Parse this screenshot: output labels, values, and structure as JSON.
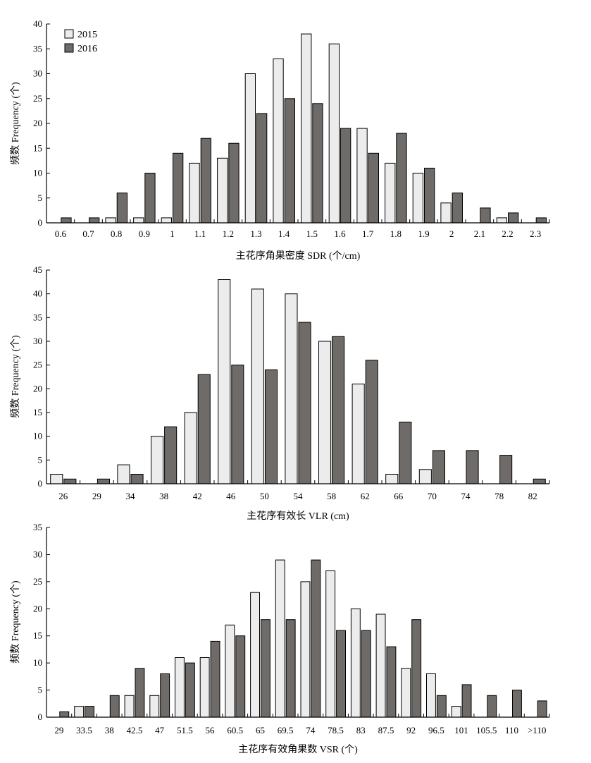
{
  "colors": {
    "series_2015": "#ececec",
    "series_2016": "#6f6b69",
    "bar_stroke": "#000000",
    "axis": "#000000"
  },
  "chart_data": [
    {
      "type": "bar",
      "xlabel": "主花序角果密度 SDR (个/cm)",
      "ylabel": "频数 Frequency (个)",
      "ylim": [
        0,
        40
      ],
      "yticks": [
        "0",
        "5",
        "10",
        "15",
        "20",
        "25",
        "30",
        "35",
        "40"
      ],
      "legend": {
        "position": "top-left",
        "entries": [
          "2015",
          "2016"
        ]
      },
      "grid": false,
      "categories": [
        "0.6",
        "0.7",
        "0.8",
        "0.9",
        "1",
        "1.1",
        "1.2",
        "1.3",
        "1.4",
        "1.5",
        "1.6",
        "1.7",
        "1.8",
        "1.9",
        "2",
        "2.1",
        "2.2",
        "2.3"
      ],
      "series": [
        {
          "name": "2015",
          "values": [
            0,
            0,
            1,
            1,
            1,
            12,
            13,
            30,
            33,
            38,
            36,
            19,
            12,
            10,
            4,
            0,
            1,
            0
          ]
        },
        {
          "name": "2016",
          "values": [
            1,
            1,
            6,
            10,
            14,
            17,
            16,
            22,
            25,
            24,
            19,
            14,
            18,
            11,
            6,
            3,
            2,
            1
          ]
        }
      ]
    },
    {
      "type": "bar",
      "xlabel": "主花序有效长 VLR (cm)",
      "ylabel": "频数 Frequency (个)",
      "ylim": [
        0,
        45
      ],
      "yticks": [
        "0",
        "5",
        "10",
        "15",
        "20",
        "25",
        "30",
        "35",
        "40",
        "45"
      ],
      "grid": false,
      "categories": [
        "26",
        "29",
        "34",
        "38",
        "42",
        "46",
        "50",
        "54",
        "58",
        "62",
        "66",
        "70",
        "74",
        "78",
        "82"
      ],
      "series": [
        {
          "name": "2015",
          "values": [
            2,
            0,
            4,
            10,
            15,
            43,
            41,
            40,
            30,
            21,
            2,
            3,
            0,
            0,
            0
          ]
        },
        {
          "name": "2016",
          "values": [
            1,
            1,
            2,
            12,
            23,
            25,
            24,
            34,
            31,
            26,
            13,
            7,
            7,
            6,
            1
          ]
        }
      ]
    },
    {
      "type": "bar",
      "xlabel": "主花序有效角果数 VSR (个)",
      "ylabel": "频数 Frequency (个)",
      "ylim": [
        0,
        35
      ],
      "yticks": [
        "0",
        "5",
        "10",
        "15",
        "20",
        "25",
        "30",
        "35"
      ],
      "grid": false,
      "categories": [
        "29",
        "33.5",
        "38",
        "42.5",
        "47",
        "51.5",
        "56",
        "60.5",
        "65",
        "69.5",
        "74",
        "78.5",
        "83",
        "87.5",
        "92",
        "96.5",
        "101",
        "105.5",
        "110",
        ">110"
      ],
      "series": [
        {
          "name": "2015",
          "values": [
            0,
            2,
            0,
            4,
            4,
            11,
            11,
            17,
            23,
            29,
            25,
            27,
            20,
            19,
            9,
            8,
            2,
            0,
            0,
            0
          ]
        },
        {
          "name": "2016",
          "values": [
            1,
            2,
            4,
            9,
            8,
            10,
            14,
            15,
            18,
            18,
            29,
            16,
            16,
            13,
            18,
            4,
            6,
            4,
            5,
            3
          ]
        }
      ]
    }
  ]
}
